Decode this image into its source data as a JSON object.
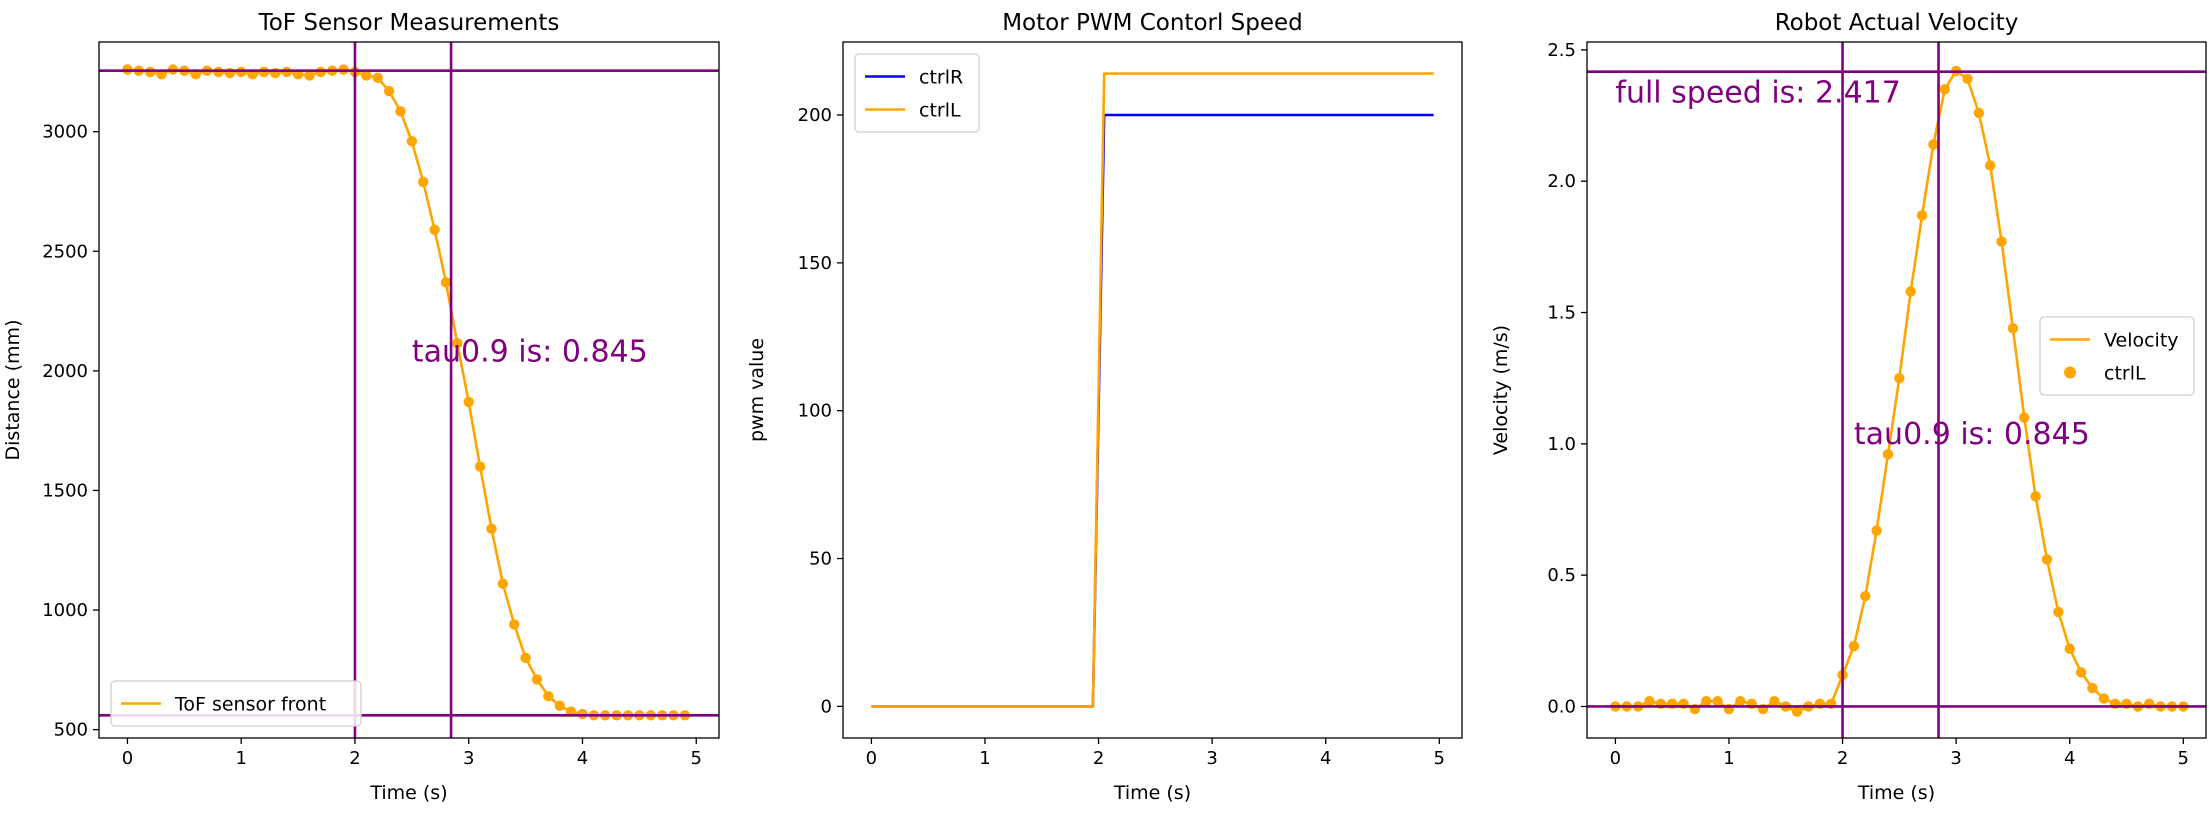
{
  "chart_data": [
    {
      "type": "line",
      "title": "ToF Sensor Measurements",
      "xlabel": "Time (s)",
      "ylabel": "Distance (mm)",
      "xlim": [
        -0.25,
        5.2
      ],
      "ylim": [
        465,
        3375
      ],
      "xticks": [
        0,
        1,
        2,
        3,
        4,
        5
      ],
      "yticks": [
        500,
        1000,
        1500,
        2000,
        2500,
        3000
      ],
      "grid": false,
      "legend": "lower-left",
      "series": [
        {
          "name": "ToF sensor front",
          "color": "#ffa500",
          "marker": "circle",
          "x": [
            0.0,
            0.1,
            0.2,
            0.3,
            0.4,
            0.5,
            0.6,
            0.7,
            0.8,
            0.9,
            1.0,
            1.1,
            1.2,
            1.3,
            1.4,
            1.5,
            1.6,
            1.7,
            1.8,
            1.9,
            2.0,
            2.1,
            2.2,
            2.3,
            2.4,
            2.5,
            2.6,
            2.7,
            2.8,
            2.9,
            3.0,
            3.1,
            3.2,
            3.3,
            3.4,
            3.5,
            3.6,
            3.7,
            3.8,
            3.9,
            4.0,
            4.1,
            4.2,
            4.3,
            4.4,
            4.5,
            4.6,
            4.7,
            4.8,
            4.9
          ],
          "y": [
            3260,
            3255,
            3250,
            3240,
            3260,
            3255,
            3240,
            3255,
            3250,
            3245,
            3250,
            3240,
            3250,
            3245,
            3250,
            3240,
            3235,
            3250,
            3255,
            3260,
            3250,
            3235,
            3225,
            3170,
            3085,
            2960,
            2790,
            2590,
            2370,
            2115,
            1870,
            1600,
            1340,
            1110,
            940,
            800,
            710,
            640,
            600,
            575,
            565,
            560,
            560,
            560,
            560,
            560,
            560,
            560,
            560,
            560
          ]
        }
      ],
      "reference_lines": {
        "vertical": [
          2.0,
          2.845
        ],
        "horizontal": [
          3255,
          560
        ],
        "color": "#800080"
      },
      "annotations": [
        {
          "text": "tau0.9 is: 0.845",
          "x": 2.5,
          "y": 2040
        }
      ]
    },
    {
      "type": "line",
      "title": "Motor PWM Contorl Speed",
      "xlabel": "Time (s)",
      "ylabel": "pwm value",
      "xlim": [
        -0.25,
        5.2
      ],
      "ylim": [
        -10.7,
        224.7
      ],
      "xticks": [
        0,
        1,
        2,
        3,
        4,
        5
      ],
      "yticks": [
        0,
        50,
        100,
        150,
        200
      ],
      "grid": false,
      "legend": "top-left",
      "series": [
        {
          "name": "ctrlR",
          "color": "#0000ff",
          "x": [
            0,
            1.95,
            2.05,
            4.95
          ],
          "y": [
            0,
            0,
            200,
            200
          ]
        },
        {
          "name": "ctrlL",
          "color": "#ffa500",
          "x": [
            0,
            1.95,
            2.05,
            4.95
          ],
          "y": [
            0,
            0,
            214,
            214
          ]
        }
      ]
    },
    {
      "type": "line",
      "title": "Robot Actual Velocity",
      "xlabel": "Time (s)",
      "ylabel": "Velocity (m/s)",
      "xlim": [
        -0.25,
        5.2
      ],
      "ylim": [
        -0.12,
        2.53
      ],
      "xticks": [
        0,
        1,
        2,
        3,
        4,
        5
      ],
      "yticks": [
        0.0,
        0.5,
        1.0,
        1.5,
        2.0,
        2.5
      ],
      "grid": false,
      "legend": "center-right",
      "series": [
        {
          "name": "Velocity",
          "color": "#ffa500",
          "marker": "circle",
          "x": [
            0.0,
            0.1,
            0.2,
            0.3,
            0.4,
            0.5,
            0.6,
            0.7,
            0.8,
            0.9,
            1.0,
            1.1,
            1.2,
            1.3,
            1.4,
            1.5,
            1.6,
            1.7,
            1.8,
            1.9,
            2.0,
            2.1,
            2.2,
            2.3,
            2.4,
            2.5,
            2.6,
            2.7,
            2.8,
            2.9,
            3.0,
            3.1,
            3.2,
            3.3,
            3.4,
            3.5,
            3.6,
            3.7,
            3.8,
            3.9,
            4.0,
            4.1,
            4.2,
            4.3,
            4.4,
            4.5,
            4.6,
            4.7,
            4.8,
            4.9,
            5.0
          ],
          "y": [
            0.0,
            0.0,
            0.0,
            0.02,
            0.01,
            0.01,
            0.01,
            -0.01,
            0.02,
            0.02,
            -0.01,
            0.02,
            0.01,
            -0.01,
            0.02,
            0.0,
            -0.02,
            0.0,
            0.01,
            0.01,
            0.12,
            0.23,
            0.42,
            0.67,
            0.96,
            1.25,
            1.58,
            1.87,
            2.14,
            2.35,
            2.42,
            2.39,
            2.26,
            2.06,
            1.77,
            1.44,
            1.1,
            0.8,
            0.56,
            0.36,
            0.22,
            0.13,
            0.07,
            0.03,
            0.01,
            0.01,
            0.0,
            0.01,
            0.0,
            0.0,
            0.0
          ]
        }
      ],
      "scatter_legend_label": "ctrlL",
      "reference_lines": {
        "vertical": [
          2.0,
          2.845
        ],
        "horizontal": [
          2.417,
          0.0
        ],
        "color": "#800080"
      },
      "annotations": [
        {
          "text": "full speed is: 2.417",
          "x": 0.0,
          "y": 2.3
        },
        {
          "text": "tau0.9 is: 0.845",
          "x": 2.1,
          "y": 1.0
        }
      ]
    }
  ]
}
